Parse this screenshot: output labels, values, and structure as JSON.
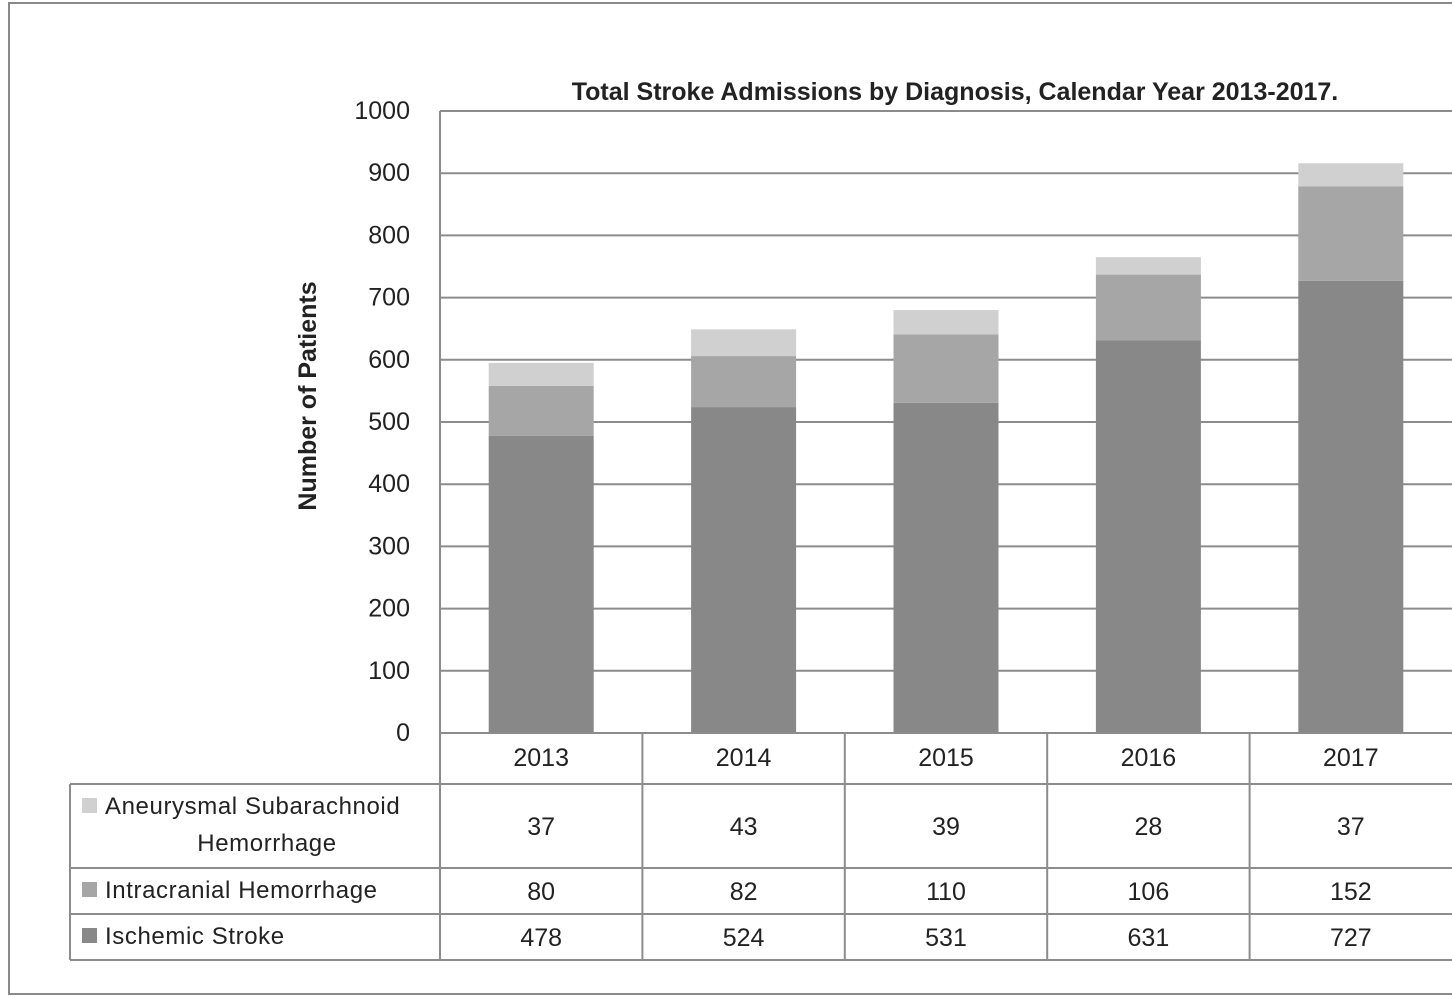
{
  "chart_data": {
    "type": "bar",
    "stacked": true,
    "title": "Total Stroke Admissions by Diagnosis, Calendar Year 2013-2017.",
    "xlabel": "",
    "ylabel": "Number of Patients",
    "ylim": [
      0,
      1000
    ],
    "yticks": [
      "0",
      "100",
      "200",
      "300",
      "400",
      "500",
      "600",
      "700",
      "800",
      "900",
      "1000"
    ],
    "grid": true,
    "legend": "data-table",
    "categories": [
      "2013",
      "2014",
      "2015",
      "2016",
      "2017"
    ],
    "series": [
      {
        "name": "Ischemic Stroke",
        "values": [
          478,
          524,
          531,
          631,
          727
        ],
        "color": "#888888"
      },
      {
        "name": "Intracranial Hemorrhage",
        "values": [
          80,
          82,
          110,
          106,
          152
        ],
        "color": "#a6a6a6"
      },
      {
        "name": "Aneurysmal Subarachnoid Hemorrhage",
        "values": [
          37,
          43,
          39,
          28,
          37
        ],
        "color": "#d0d0d0"
      }
    ],
    "table_rows": [
      {
        "name_lines": [
          "Aneurysmal Subarachnoid",
          "Hemorrhage"
        ],
        "values": [
          "37",
          "43",
          "39",
          "28",
          "37"
        ],
        "color": "#d0d0d0"
      },
      {
        "name_lines": [
          "Intracranial Hemorrhage"
        ],
        "values": [
          "80",
          "82",
          "110",
          "106",
          "152"
        ],
        "color": "#a6a6a6"
      },
      {
        "name_lines": [
          "Ischemic Stroke"
        ],
        "values": [
          "478",
          "524",
          "531",
          "631",
          "727"
        ],
        "color": "#888888"
      }
    ],
    "colors": {
      "gridline": "#8c8c8c",
      "axis": "#8c8c8c",
      "border": "#8a8a8a"
    }
  }
}
